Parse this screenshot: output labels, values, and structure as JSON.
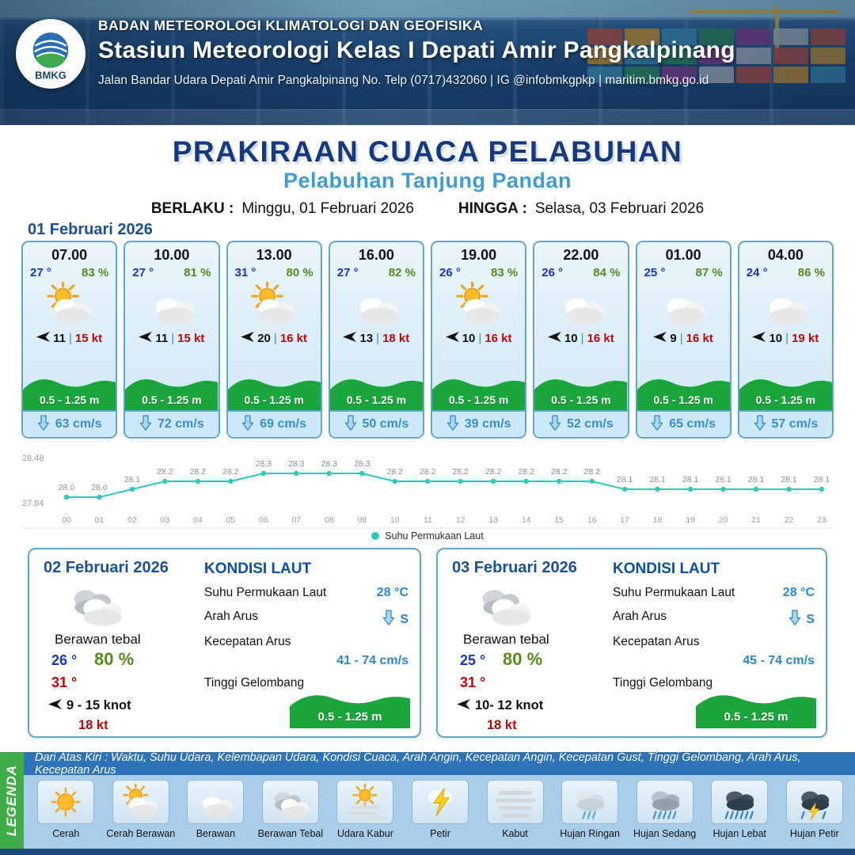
{
  "header": {
    "logo": "BMKG",
    "agency": "BADAN METEOROLOGI KLIMATOLOGI DAN GEOFISIKA",
    "station": "Stasiun Meteorologi Kelas I Depati Amir Pangkalpinang",
    "address": "Jalan Bandar Udara Depati Amir Pangkalpinang No. Telp (0717)432060 | IG @infobmkgpkp | maritim.bmkg.go.id"
  },
  "title": {
    "main": "PRAKIRAAN CUACA PELABUHAN",
    "subtitle": "Pelabuhan Tanjung Pandan",
    "berlaku_label": "BERLAKU :",
    "berlaku_value": "Minggu, 01 Februari 2026",
    "hingga_label": "HINGGA :",
    "hingga_value": "Selasa, 03 Februari 2026"
  },
  "ui": {
    "pipe": "|"
  },
  "day1": {
    "date": "01 Februari 2026",
    "cards": [
      {
        "time": "07.00",
        "temp": "27 °",
        "humidity": "83 %",
        "icon": "cerah-berawan",
        "wind": "11",
        "gust": "15 kt",
        "wave": "0.5 - 1.25 m",
        "current": "63 cm/s"
      },
      {
        "time": "10.00",
        "temp": "27 °",
        "humidity": "81 %",
        "icon": "berawan",
        "wind": "11",
        "gust": "15 kt",
        "wave": "0.5 - 1.25 m",
        "current": "72 cm/s"
      },
      {
        "time": "13.00",
        "temp": "31 °",
        "humidity": "80 %",
        "icon": "cerah-berawan",
        "wind": "20",
        "gust": "16 kt",
        "wave": "0.5 - 1.25 m",
        "current": "69 cm/s"
      },
      {
        "time": "16.00",
        "temp": "27 °",
        "humidity": "82 %",
        "icon": "berawan",
        "wind": "13",
        "gust": "18 kt",
        "wave": "0.5 - 1.25 m",
        "current": "50 cm/s"
      },
      {
        "time": "19.00",
        "temp": "26 °",
        "humidity": "83 %",
        "icon": "cerah-berawan",
        "wind": "10",
        "gust": "16 kt",
        "wave": "0.5 - 1.25 m",
        "current": "39 cm/s"
      },
      {
        "time": "22.00",
        "temp": "26 °",
        "humidity": "84 %",
        "icon": "berawan",
        "wind": "10",
        "gust": "16 kt",
        "wave": "0.5 - 1.25 m",
        "current": "52 cm/s"
      },
      {
        "time": "01.00",
        "temp": "25 °",
        "humidity": "87 %",
        "icon": "berawan",
        "wind": "9",
        "gust": "16 kt",
        "wave": "0.5 - 1.25 m",
        "current": "65 cm/s"
      },
      {
        "time": "04.00",
        "temp": "24 °",
        "humidity": "86 %",
        "icon": "berawan",
        "wind": "10",
        "gust": "19 kt",
        "wave": "0.5 - 1.25 m",
        "current": "57 cm/s"
      }
    ]
  },
  "chart_data": {
    "type": "line",
    "x": [
      "00",
      "01",
      "02",
      "03",
      "04",
      "05",
      "06",
      "07",
      "08",
      "09",
      "10",
      "11",
      "12",
      "13",
      "14",
      "15",
      "16",
      "17",
      "18",
      "19",
      "20",
      "21",
      "22",
      "23"
    ],
    "series": [
      {
        "name": "Suhu Permukaan Laut",
        "values": [
          28.0,
          28.0,
          28.1,
          28.2,
          28.2,
          28.2,
          28.3,
          28.3,
          28.3,
          28.3,
          28.2,
          28.2,
          28.2,
          28.2,
          28.2,
          28.2,
          28.2,
          28.1,
          28.1,
          28.1,
          28.1,
          28.1,
          28.1,
          28.1
        ]
      }
    ],
    "ylim": [
      27.84,
      28.48
    ],
    "y_ticks": [
      "28.48",
      "27.84"
    ],
    "xlabel": "",
    "ylabel": "",
    "legend": "Suhu Permukaan Laut",
    "legend_position": "bottom",
    "grid": false,
    "line_color": "#2ec9b8"
  },
  "day2": {
    "date": "02 Februari 2026",
    "condition": "Berawan tebal",
    "icon": "berawan-tebal",
    "temp_min": "26 °",
    "humidity": "80 %",
    "temp_max": "31 °",
    "wind": "9  - 15 knot",
    "gust": "18 kt",
    "sea": {
      "title": "KONDISI LAUT",
      "sst_label": "Suhu Permukaan Laut",
      "sst_value": "28 °C",
      "current_dir_label": "Arah Arus",
      "current_dir_value": "S",
      "current_speed_label": "Kecepatan Arus",
      "current_speed_value": "41  - 74 cm/s",
      "wave_label": "Tinggi Gelombang",
      "wave_value": "0.5 - 1.25 m"
    }
  },
  "day3": {
    "date": "03 Februari 2026",
    "condition": "Berawan tebal",
    "icon": "berawan-tebal",
    "temp_min": "25 °",
    "humidity": "80 %",
    "temp_max": "31 °",
    "wind": "10- 12 knot",
    "gust": "18 kt",
    "sea": {
      "title": "KONDISI LAUT",
      "sst_label": "Suhu Permukaan Laut",
      "sst_value": "28 °C",
      "current_dir_label": "Arah Arus",
      "current_dir_value": "S",
      "current_speed_label": "Kecepatan Arus",
      "current_speed_value": "45  - 74 cm/s",
      "wave_label": "Tinggi Gelombang",
      "wave_value": "0.5 - 1.25 m"
    }
  },
  "legend": {
    "label": "LEGENDA",
    "note": "Dari Atas Kiri : Waktu, Suhu Udara, Kelembapan Udara, Kondisi Cuaca, Arah Angin, Kecepatan Angin, Kecepatan Gust, Tinggi Gelombang, Arah Arus, Kecepatan Arus",
    "items": [
      {
        "label": "Cerah",
        "icon": "cerah"
      },
      {
        "label": "Cerah Berawan",
        "icon": "cerah-berawan"
      },
      {
        "label": "Berawan",
        "icon": "berawan"
      },
      {
        "label": "Berawan Tebal",
        "icon": "berawan-tebal"
      },
      {
        "label": "Udara Kabur",
        "icon": "udara-kabur"
      },
      {
        "label": "Petir",
        "icon": "petir"
      },
      {
        "label": "Kabut",
        "icon": "kabut"
      },
      {
        "label": "Hujan Ringan",
        "icon": "hujan-ringan"
      },
      {
        "label": "Hujan Sedang",
        "icon": "hujan-sedang"
      },
      {
        "label": "Hujan Lebat",
        "icon": "hujan-lebat"
      },
      {
        "label": "Hujan Petir",
        "icon": "hujan-petir"
      }
    ]
  }
}
